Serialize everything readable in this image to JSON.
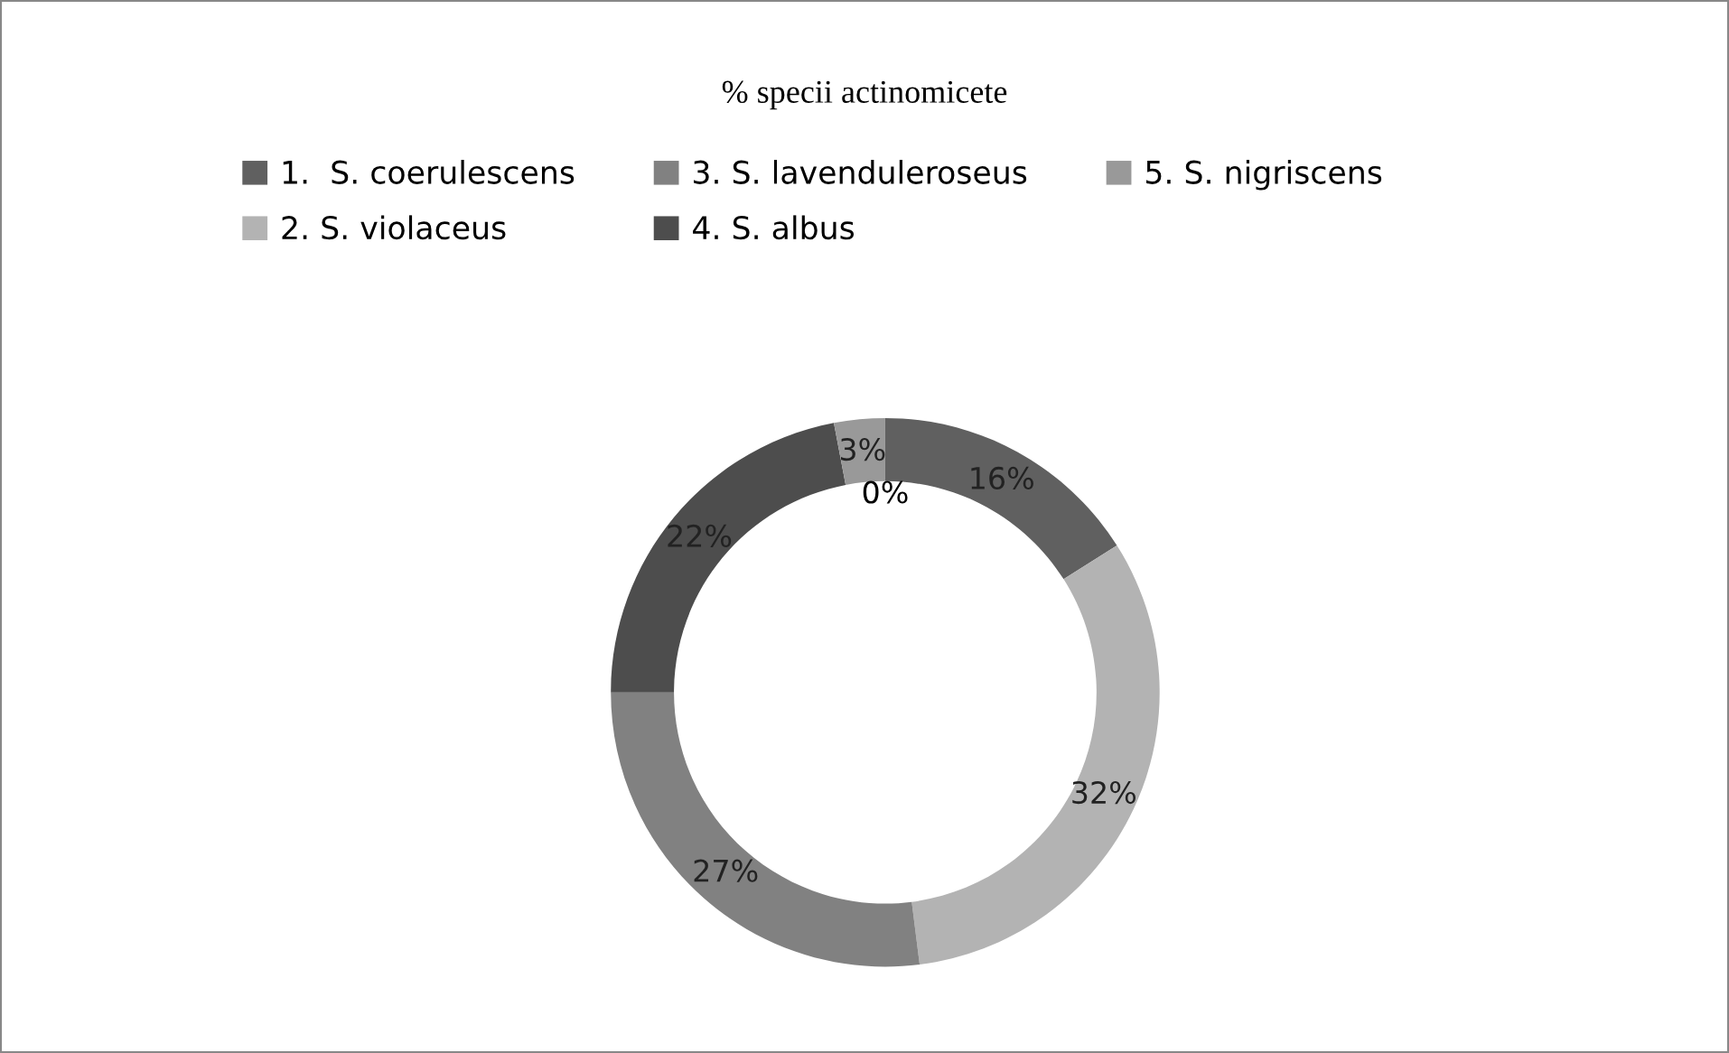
{
  "chart_data": {
    "type": "donut",
    "title": "% specii actinomicete",
    "categories": [
      "1.  S. coerulescens",
      "2. S. violaceus",
      "3. S. lavenduleroseus",
      "4. S. albus",
      "5. S. nigriscens"
    ],
    "values": [
      16,
      32,
      27,
      22,
      3
    ],
    "colors": [
      "#606060",
      "#b3b3b3",
      "#818181",
      "#4d4d4d",
      "#999999"
    ],
    "value_labels": [
      "16%",
      "32%",
      "27%",
      "22%",
      "3%"
    ],
    "annotations": [
      "0%"
    ],
    "legend": "top"
  }
}
